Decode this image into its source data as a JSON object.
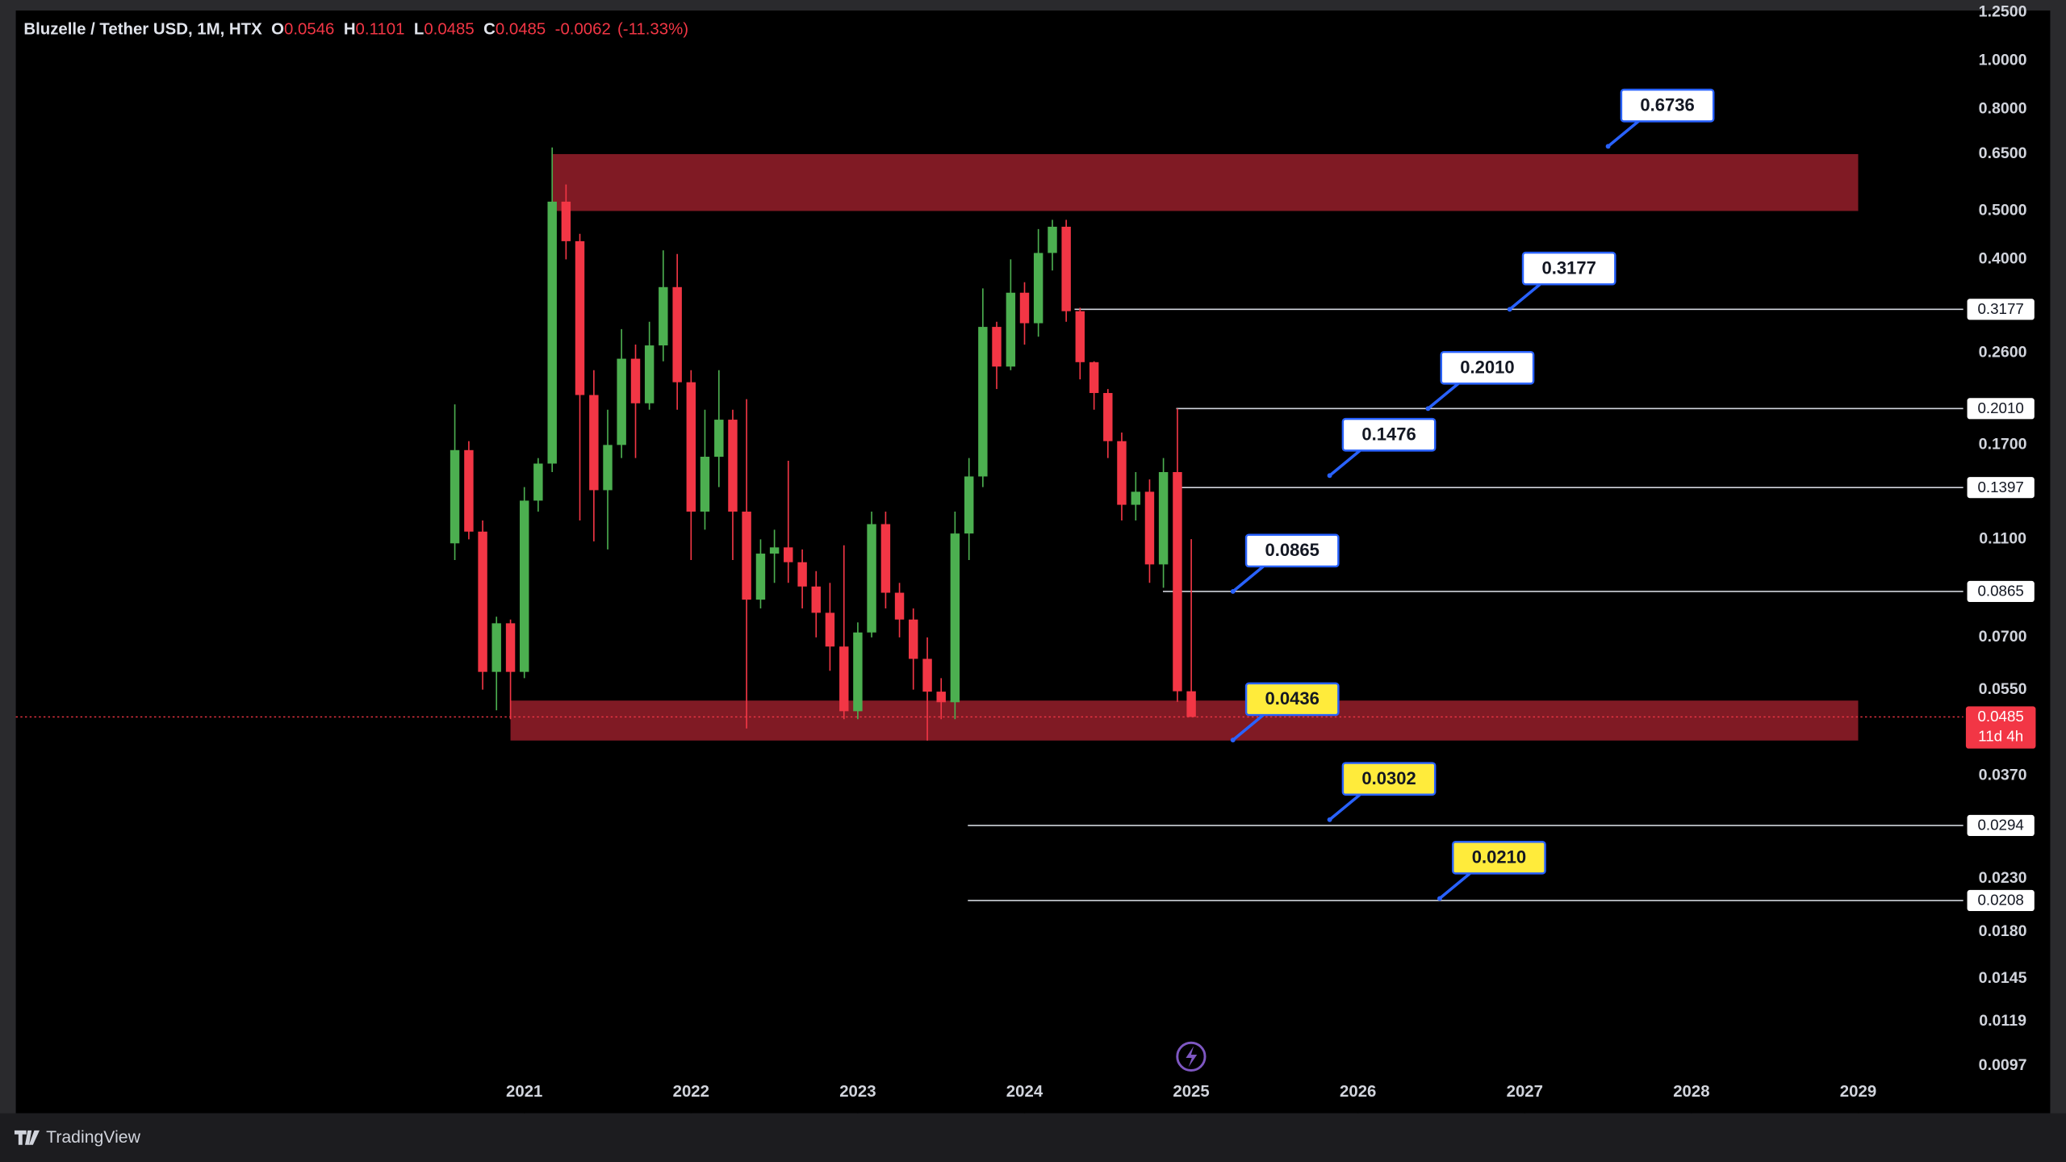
{
  "chart_data": {
    "type": "candlestick",
    "title": "Bluzelle / Tether USD, 1M, HTX",
    "ohlc_labels": [
      "O",
      "H",
      "L",
      "C"
    ],
    "change": -0.0062,
    "change_pct": {
      "value": -11.33,
      "label": "(-11.33%)"
    },
    "x": [
      2020.583,
      2020.667,
      2020.75,
      2020.833,
      2020.917,
      2021,
      2021.083,
      2021.167,
      2021.25,
      2021.333,
      2021.417,
      2021.5,
      2021.583,
      2021.667,
      2021.75,
      2021.833,
      2021.917,
      2022,
      2022.083,
      2022.167,
      2022.25,
      2022.333,
      2022.417,
      2022.5,
      2022.583,
      2022.667,
      2022.75,
      2022.833,
      2022.917,
      2023,
      2023.083,
      2023.167,
      2023.25,
      2023.333,
      2023.417,
      2023.5,
      2023.583,
      2023.667,
      2023.75,
      2023.833,
      2023.917,
      2024,
      2024.083,
      2024.167,
      2024.25,
      2024.333,
      2024.417,
      2024.5,
      2024.583,
      2024.667,
      2024.75,
      2024.833,
      2024.917,
      2025
    ],
    "open": [
      0.108,
      0.166,
      0.114,
      0.0597,
      0.0747,
      0.0597,
      0.1315,
      0.156,
      0.522,
      0.435,
      0.214,
      0.138,
      0.17,
      0.253,
      0.206,
      0.269,
      0.352,
      0.227,
      0.125,
      0.161,
      0.191,
      0.125,
      0.0833,
      0.103,
      0.106,
      0.099,
      0.0885,
      0.0784,
      0.0671,
      0.0498,
      0.0716,
      0.118,
      0.086,
      0.076,
      0.0634,
      0.0545,
      0.0519,
      0.113,
      0.147,
      0.293,
      0.244,
      0.343,
      0.298,
      0.412,
      0.465,
      0.315,
      0.249,
      0.216,
      0.173,
      0.129,
      0.137,
      0.098,
      0.15,
      0.0546
    ],
    "high": [
      0.205,
      0.173,
      0.12,
      0.077,
      0.076,
      0.14,
      0.16,
      0.67,
      0.565,
      0.45,
      0.24,
      0.2,
      0.29,
      0.27,
      0.3,
      0.417,
      0.41,
      0.24,
      0.2,
      0.24,
      0.2,
      0.21,
      0.11,
      0.115,
      0.158,
      0.105,
      0.095,
      0.09,
      0.107,
      0.075,
      0.125,
      0.125,
      0.09,
      0.08,
      0.07,
      0.058,
      0.125,
      0.16,
      0.35,
      0.3,
      0.4,
      0.36,
      0.46,
      0.48,
      0.48,
      0.32,
      0.25,
      0.22,
      0.18,
      0.15,
      0.145,
      0.16,
      0.201,
      0.1101
    ],
    "low": [
      0.1,
      0.11,
      0.055,
      0.05,
      0.048,
      0.058,
      0.125,
      0.15,
      0.4,
      0.12,
      0.109,
      0.105,
      0.16,
      0.16,
      0.2,
      0.25,
      0.2,
      0.1,
      0.115,
      0.14,
      0.1,
      0.046,
      0.08,
      0.09,
      0.09,
      0.08,
      0.07,
      0.06,
      0.048,
      0.048,
      0.07,
      0.08,
      0.07,
      0.055,
      0.0435,
      0.048,
      0.048,
      0.1,
      0.14,
      0.22,
      0.24,
      0.27,
      0.28,
      0.38,
      0.3,
      0.23,
      0.2,
      0.16,
      0.12,
      0.12,
      0.09,
      0.088,
      0.052,
      0.0485
    ],
    "close": [
      0.166,
      0.114,
      0.0597,
      0.0747,
      0.0597,
      0.1315,
      0.156,
      0.522,
      0.435,
      0.214,
      0.138,
      0.17,
      0.253,
      0.206,
      0.269,
      0.352,
      0.227,
      0.125,
      0.161,
      0.191,
      0.125,
      0.0833,
      0.103,
      0.106,
      0.099,
      0.0885,
      0.0784,
      0.0671,
      0.0498,
      0.0716,
      0.118,
      0.086,
      0.076,
      0.0634,
      0.0545,
      0.0519,
      0.113,
      0.147,
      0.293,
      0.244,
      0.343,
      0.298,
      0.412,
      0.465,
      0.315,
      0.249,
      0.216,
      0.173,
      0.129,
      0.137,
      0.098,
      0.15,
      0.0546,
      0.0485
    ],
    "up_color": "#4caf50",
    "down_color": "#f23645",
    "log_scale": true,
    "xlim": [
      2017.95,
      2029.63
    ],
    "xticks": [
      2021,
      2022,
      2023,
      2024,
      2025,
      2026,
      2027,
      2028,
      2029
    ],
    "ylim": [
      0.0078,
      1.26
    ],
    "yticks": [
      {
        "value": 1.25,
        "label": "1.2500"
      },
      {
        "value": 1,
        "label": "1.0000"
      },
      {
        "value": 0.8,
        "label": "0.8000"
      },
      {
        "value": 0.65,
        "label": "0.6500"
      },
      {
        "value": 0.5,
        "label": "0.5000"
      },
      {
        "value": 0.4,
        "label": "0.4000"
      },
      {
        "value": 0.26,
        "label": "0.2600"
      },
      {
        "value": 0.17,
        "label": "0.1700"
      },
      {
        "value": 0.11,
        "label": "0.1100"
      },
      {
        "value": 0.07,
        "label": "0.0700"
      },
      {
        "value": 0.055,
        "label": "0.0550"
      },
      {
        "value": 0.037,
        "label": "0.0370"
      },
      {
        "value": 0.023,
        "label": "0.0230"
      },
      {
        "value": 0.018,
        "label": "0.0180"
      },
      {
        "value": 0.0145,
        "label": "0.0145"
      },
      0.0119,
      0.0097
    ],
    "zones": [
      {
        "x": [
          2021.167,
          2029
        ],
        "y": [
          0.5,
          0.65
        ],
        "color": "#8b1c27"
      },
      {
        "x": [
          2020.917,
          2029
        ],
        "y": [
          0.0435,
          0.0523
        ],
        "color": "#8b1c27"
      }
    ],
    "levels": [
      {
        "value": 0.3177,
        "x": 2024.3
      },
      {
        "value": {
          "value": 0.201,
          "label": "0.2010"
        },
        "x": 2024.91
      },
      {
        "value": 0.1397,
        "x": 2024.91
      },
      {
        "value": 0.0865,
        "x": 2024.83
      },
      {
        "value": 0.0294,
        "x": 2023.66
      },
      {
        "value": 0.0208,
        "x": 2023.66
      }
    ],
    "callouts": [
      {
        "value": 0.6736,
        "x": 2027.5,
        "color": "#ffffff"
      },
      {
        "value": 0.3177,
        "x": 2026.91,
        "color": "#ffffff"
      },
      {
        "value": {
          "value": 0.201,
          "label": "0.2010"
        },
        "x": 2026.42,
        "color": "#ffffff"
      },
      {
        "value": 0.1476,
        "x": 2025.83,
        "color": "#ffffff"
      },
      {
        "value": 0.0865,
        "x": 2025.25,
        "color": "#ffffff"
      },
      {
        "value": 0.0436,
        "x": 2025.25,
        "color": "#ffeb3b"
      },
      {
        "value": 0.0302,
        "x": 2025.83,
        "color": "#ffeb3b"
      },
      {
        "value": {
          "value": 0.021,
          "label": "0.0210"
        },
        "x": 2026.49,
        "color": "#ffeb3b"
      }
    ],
    "countdown": "11d 4h"
  },
  "footer": {
    "brand": "TradingView"
  }
}
